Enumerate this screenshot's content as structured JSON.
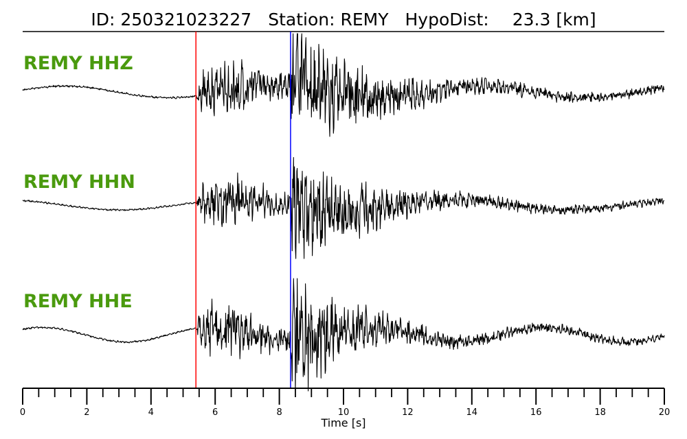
{
  "header": {
    "id_text": "ID: 250321023227",
    "station_text": "Station: REMY",
    "hypodist_label": "HypoDist:",
    "hypodist_value": "23.3 [km]"
  },
  "colors": {
    "label": "#4a9a0e",
    "trace": "#000000",
    "p_pick": "#ff0000",
    "s_pick": "#0000ff"
  },
  "chart_data": {
    "type": "line",
    "title": "ID: 250321023227   Station: REMY   HypoDist:    23.3 [km]",
    "xlabel": "Time [s]",
    "xlim": [
      0,
      20
    ],
    "x_ticks": [
      0,
      2,
      4,
      6,
      8,
      10,
      12,
      14,
      16,
      18,
      20
    ],
    "x_tick_labels": [
      "0",
      "2",
      "4",
      "6",
      "8",
      "10",
      "12",
      "14",
      "16",
      "18",
      "20"
    ],
    "minor_tick_step": 0.5,
    "p_pick_time": 5.4,
    "s_pick_time": 8.35,
    "series": [
      {
        "name": "REMY HHZ",
        "noise_amp": 0.06,
        "coda_decay": 2.2,
        "lowfreq_amp": 0.1,
        "lowfreq_period": 6.5,
        "lowfreq_phase": 0.3
      },
      {
        "name": "REMY HHN",
        "noise_amp": 0.06,
        "coda_decay": 2.0,
        "lowfreq_amp": 0.09,
        "lowfreq_period": 7.0,
        "lowfreq_phase": 2.0
      },
      {
        "name": "REMY HHE",
        "noise_amp": 0.07,
        "coda_decay": 1.8,
        "lowfreq_amp": 0.13,
        "lowfreq_period": 5.2,
        "lowfreq_phase": 0.8
      }
    ]
  }
}
